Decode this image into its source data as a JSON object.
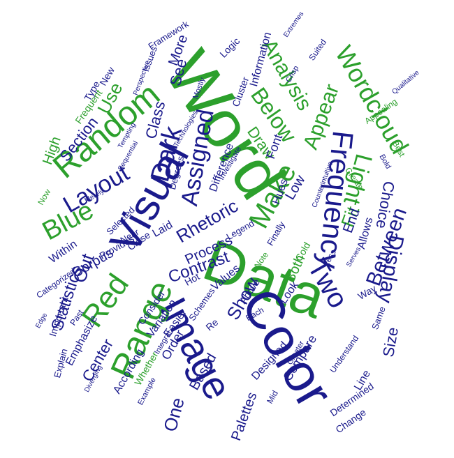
{
  "colors": {
    "green": "#2ca02c",
    "blue": "#1a1a8c",
    "background": "#ffffff"
  },
  "words": [
    "Word",
    "Data",
    "Color",
    "Visual",
    "Image",
    "Range",
    "Random",
    "Red",
    "Frequency",
    "Two",
    "Wordcloud",
    "Dark",
    "Assigned",
    "Light",
    "Make",
    "Blue",
    "Layout",
    "Analysis",
    "Display",
    "Below",
    "Appear",
    "Between",
    "Rhetoric",
    "Contrast",
    "Statistics",
    "Center",
    "Show",
    "Out",
    "Use",
    "Section",
    "High",
    "Choice",
    "Fit",
    "Corpus",
    "One",
    "Process",
    "Palettes",
    "Draw",
    "See",
    "More",
    "Class",
    "End",
    "Low",
    "Font",
    "Based",
    "According",
    "Order",
    "Size",
    "Emphasize",
    "Compare",
    "Designed",
    "Line",
    "Variation",
    "Easier",
    "Both",
    "Look",
    "Hot",
    "Values",
    "Provides",
    "Important",
    "Whether",
    "Within",
    "Categorized",
    "Framework",
    "Logic",
    "Information",
    "Issues",
    "Type",
    "New",
    "Frequent",
    "Cluster",
    "Explain",
    "Consider",
    "Hues",
    "Laid",
    "Near",
    "Close",
    "Selected",
    "Degrees",
    "Difference",
    "Legend",
    "Cold",
    "Allows",
    "Way",
    "Same",
    "Finally",
    "Above",
    "Schemes",
    "Integral",
    "Note",
    "Each",
    "Re",
    "Determined",
    "Change",
    "Diverging",
    "Example",
    "Understand",
    "Past",
    "Less",
    "Now",
    "Bold",
    "Greater",
    "Mid",
    "Create",
    "Best",
    "Extremes",
    "Counterintuitive",
    "Investigate",
    "Suited",
    "Qualitative",
    "Sequential",
    "Crisp",
    "Tempting",
    "Edge",
    "Merely",
    "Perspective",
    "Serves",
    "Technologies",
    "Mostly",
    "Appealing"
  ]
}
